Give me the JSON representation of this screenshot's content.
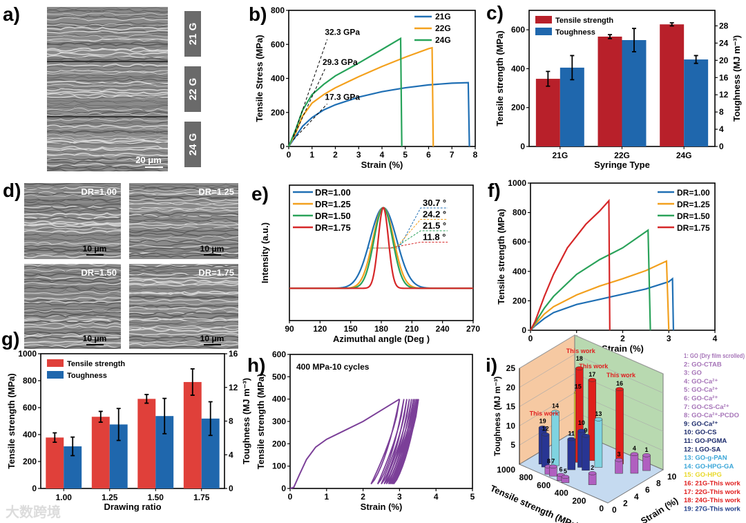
{
  "panel_letters": {
    "a": "a)",
    "b": "b)",
    "c": "c)",
    "d": "d)",
    "e": "e)",
    "f": "f)",
    "g": "g)",
    "h": "h)",
    "i": "i)"
  },
  "watermark": "大数跨境",
  "images": {
    "a": {
      "labels": [
        "21 G",
        "22 G",
        "24 G"
      ],
      "scale_bar": "20 μm"
    },
    "d": {
      "tiles": [
        {
          "label": "DR=1.00",
          "scale_bar": "10 μm"
        },
        {
          "label": "DR=1.25",
          "scale_bar": "10 μm"
        },
        {
          "label": "DR=1.50",
          "scale_bar": "10 μm"
        },
        {
          "label": "DR=1.75",
          "scale_bar": "10 μm"
        }
      ]
    }
  },
  "chart_data": [
    {
      "panel": "b",
      "type": "line",
      "xlabel": "Strain (%)",
      "ylabel": "Tensile Stress (MPa)",
      "xlim": [
        0,
        8
      ],
      "ylim": [
        0,
        800
      ],
      "xticks": [
        0,
        1,
        2,
        3,
        4,
        5,
        6,
        7,
        8
      ],
      "yticks": [
        0,
        200,
        400,
        600,
        800
      ],
      "legend": "top-right",
      "series": [
        {
          "name": "21G",
          "color": "#1f6fb4",
          "points": [
            [
              0,
              0
            ],
            [
              0.3,
              60
            ],
            [
              0.6,
              120
            ],
            [
              1,
              170
            ],
            [
              1.5,
              215
            ],
            [
              2,
              245
            ],
            [
              3,
              290
            ],
            [
              4,
              322
            ],
            [
              5,
              345
            ],
            [
              6,
              362
            ],
            [
              7,
              372
            ],
            [
              7.7,
              375
            ],
            [
              7.75,
              0
            ]
          ]
        },
        {
          "name": "22G",
          "color": "#f4a11d",
          "points": [
            [
              0,
              0
            ],
            [
              0.3,
              80
            ],
            [
              0.6,
              180
            ],
            [
              1,
              255
            ],
            [
              1.5,
              305
            ],
            [
              2,
              345
            ],
            [
              3,
              410
            ],
            [
              4,
              470
            ],
            [
              5,
              525
            ],
            [
              6,
              575
            ],
            [
              6.15,
              580
            ],
            [
              6.2,
              0
            ]
          ]
        },
        {
          "name": "24G",
          "color": "#27a35a",
          "points": [
            [
              0,
              0
            ],
            [
              0.3,
              100
            ],
            [
              0.6,
              215
            ],
            [
              1,
              305
            ],
            [
              1.5,
              365
            ],
            [
              2,
              415
            ],
            [
              3,
              490
            ],
            [
              4,
              570
            ],
            [
              4.8,
              635
            ],
            [
              4.85,
              0
            ]
          ]
        }
      ],
      "annotations": [
        {
          "text": "32.3 GPa",
          "x": 1.55,
          "y": 655,
          "from": [
            0.2,
            60
          ]
        },
        {
          "text": "29.3 GPa",
          "x": 1.45,
          "y": 480,
          "from": [
            0.2,
            55
          ]
        },
        {
          "text": "17.3 GPa",
          "x": 1.55,
          "y": 275,
          "from": [
            0.2,
            40
          ]
        }
      ]
    },
    {
      "panel": "c",
      "type": "bar",
      "xlabel": "Syringe Type",
      "ylabel": "Tensile strength (MPa)",
      "y2label": "Toughness (MJ m⁻³)",
      "categories": [
        "21G",
        "22G",
        "24G"
      ],
      "ylim": [
        0,
        700
      ],
      "y2lim": [
        0,
        31.6
      ],
      "yticks": [
        0,
        200,
        400,
        600
      ],
      "y2ticks": [
        0,
        4,
        8,
        12,
        16,
        20,
        24,
        28
      ],
      "legend": "top-left",
      "series": [
        {
          "name": "Tensile strength",
          "axis": "left",
          "color": "#b8202a",
          "values": [
            348,
            565,
            628
          ],
          "errors": [
            38,
            10,
            8
          ]
        },
        {
          "name": "Toughness",
          "axis": "right",
          "color": "#1f67ad",
          "values": [
            18.3,
            24.7,
            20.2
          ],
          "errors": [
            2.8,
            2.7,
            0.9
          ]
        }
      ]
    },
    {
      "panel": "e",
      "type": "line",
      "xlabel": "Azimuthal angle (Deg )",
      "ylabel": "Intensity (a.u.)",
      "xlim": [
        90,
        270
      ],
      "ylim": [
        -0.4,
        1.28
      ],
      "xticks": [
        90,
        120,
        150,
        180,
        210,
        240,
        270
      ],
      "yticks": [],
      "legend": "top-left",
      "peak_center": 182,
      "series": [
        {
          "name": "DR=1.00",
          "color": "#1f6fb4",
          "fwhm": 30.7,
          "label": "30.7 °"
        },
        {
          "name": "DR=1.25",
          "color": "#f2a01e",
          "fwhm": 24.2,
          "label": "24.2 °"
        },
        {
          "name": "DR=1.50",
          "color": "#2aa25a",
          "fwhm": 21.5,
          "label": "21.5 °"
        },
        {
          "name": "DR=1.75",
          "color": "#d62728",
          "fwhm": 11.8,
          "label": "11.8 °"
        }
      ]
    },
    {
      "panel": "f",
      "type": "line",
      "xlabel": "Strain (%)",
      "ylabel": "Tensile strength (MPa)",
      "xlim": [
        0,
        4
      ],
      "ylim": [
        0,
        1000
      ],
      "xticks": [
        0,
        1,
        2,
        3,
        4
      ],
      "yticks": [
        0,
        200,
        400,
        600,
        800,
        1000
      ],
      "legend": "top-right",
      "series": [
        {
          "name": "DR=1.00",
          "color": "#1f6fb4",
          "points": [
            [
              0,
              0
            ],
            [
              0.1,
              30
            ],
            [
              0.3,
              80
            ],
            [
              0.5,
              120
            ],
            [
              1,
              175
            ],
            [
              1.5,
              210
            ],
            [
              2,
              245
            ],
            [
              2.5,
              280
            ],
            [
              3,
              330
            ],
            [
              3.08,
              350
            ],
            [
              3.1,
              0
            ]
          ]
        },
        {
          "name": "DR=1.25",
          "color": "#f2a01e",
          "points": [
            [
              0,
              0
            ],
            [
              0.1,
              40
            ],
            [
              0.3,
              110
            ],
            [
              0.5,
              160
            ],
            [
              1,
              240
            ],
            [
              1.5,
              300
            ],
            [
              2,
              350
            ],
            [
              2.5,
              405
            ],
            [
              2.95,
              470
            ],
            [
              3.0,
              0
            ]
          ]
        },
        {
          "name": "DR=1.50",
          "color": "#2aa25a",
          "points": [
            [
              0,
              0
            ],
            [
              0.1,
              50
            ],
            [
              0.3,
              150
            ],
            [
              0.5,
              230
            ],
            [
              1,
              380
            ],
            [
              1.5,
              480
            ],
            [
              2,
              560
            ],
            [
              2.55,
              680
            ],
            [
              2.6,
              0
            ]
          ]
        },
        {
          "name": "DR=1.75",
          "color": "#d62728",
          "points": [
            [
              0,
              0
            ],
            [
              0.1,
              60
            ],
            [
              0.3,
              230
            ],
            [
              0.5,
              380
            ],
            [
              0.8,
              560
            ],
            [
              1.2,
              720
            ],
            [
              1.5,
              810
            ],
            [
              1.7,
              880
            ],
            [
              1.72,
              0
            ]
          ]
        }
      ]
    },
    {
      "panel": "g",
      "type": "bar",
      "xlabel": "Drawing ratio",
      "ylabel": "Tensile strength (MPa)",
      "y2label": "Toughness (MJ m⁻³)",
      "categories": [
        "1.00",
        "1.25",
        "1.50",
        "1.75"
      ],
      "ylim": [
        0,
        1000
      ],
      "y2lim": [
        0,
        16
      ],
      "yticks": [
        0,
        200,
        400,
        600,
        800,
        1000
      ],
      "y2ticks": [
        0,
        4,
        8,
        12,
        16
      ],
      "legend": "top-left",
      "series": [
        {
          "name": "Tensile strength",
          "axis": "left",
          "color": "#e0403a",
          "values": [
            378,
            532,
            665,
            790
          ],
          "errors": [
            35,
            40,
            32,
            98
          ]
        },
        {
          "name": "Toughness",
          "axis": "right",
          "color": "#1f67ad",
          "values": [
            5.0,
            7.6,
            8.6,
            8.3
          ],
          "errors": [
            1.1,
            1.9,
            2.1,
            2.0
          ]
        }
      ]
    },
    {
      "panel": "h",
      "type": "line",
      "title": "400 MPa-10 cycles",
      "xlabel": "Strain (%)",
      "ylabel": "Tensile strength (MPa)",
      "xlim": [
        0,
        5
      ],
      "ylim": [
        0,
        600
      ],
      "xticks": [
        0,
        1,
        2,
        3,
        4,
        5
      ],
      "yticks": [
        0,
        100,
        200,
        300,
        400,
        500,
        600
      ],
      "color": "#7b3f98",
      "loading": [
        [
          0,
          0
        ],
        [
          0.1,
          5
        ],
        [
          0.25,
          60
        ],
        [
          0.45,
          130
        ],
        [
          0.7,
          185
        ],
        [
          1,
          220
        ],
        [
          1.5,
          260
        ],
        [
          2,
          300
        ],
        [
          2.5,
          350
        ],
        [
          3.0,
          400
        ]
      ],
      "cycles": {
        "max_stress": 400,
        "min_stress": 20,
        "peak_strains": [
          3.0,
          3.12,
          3.2,
          3.27,
          3.33,
          3.38,
          3.42,
          3.46,
          3.49,
          3.52
        ],
        "residual_strains": [
          2.22,
          2.4,
          2.5,
          2.58,
          2.64,
          2.7,
          2.74,
          2.78,
          2.81,
          2.84
        ]
      }
    },
    {
      "panel": "i",
      "type": "bar3d",
      "xlabel": "Tensile strength (MPa)",
      "ylabel": "Strain (%)",
      "zlabel": "Toughness (MJ m⁻³)",
      "xlim": [
        0,
        1000
      ],
      "ylim": [
        0,
        10
      ],
      "zlim": [
        0,
        25
      ],
      "xticks": [
        0,
        200,
        400,
        600,
        800,
        1000
      ],
      "yticks": [
        0,
        2,
        4,
        6,
        8,
        10
      ],
      "zticks": [
        5,
        10,
        15,
        20,
        25
      ],
      "highlight_label": "This work",
      "bars": [
        {
          "id": 1,
          "name": "1: GO (Dry film scrolled)",
          "tensile": 100,
          "strain": 8.6,
          "toughness": 4,
          "color": "#b05fc0",
          "legend_color": "#a674b8"
        },
        {
          "id": 2,
          "name": "2: GO-CTAB",
          "tensile": 300,
          "strain": 2,
          "toughness": 3,
          "color": "#b05fc0",
          "legend_color": "#a674b8"
        },
        {
          "id": 3,
          "name": "3: GO",
          "tensile": 250,
          "strain": 6,
          "toughness": 3.5,
          "color": "#b05fc0",
          "legend_color": "#a674b8"
        },
        {
          "id": 4,
          "name": "4: GO-Ca²⁺",
          "tensile": 150,
          "strain": 7.2,
          "toughness": 5,
          "color": "#b05fc0",
          "legend_color": "#a674b8"
        },
        {
          "id": 5,
          "name": "5: GO-Ca²⁺",
          "tensile": 500,
          "strain": 0.3,
          "toughness": 1.5,
          "color": "#b05fc0",
          "legend_color": "#a674b8"
        },
        {
          "id": 6,
          "name": "6: GO-Ca²⁺",
          "tensile": 550,
          "strain": 0.3,
          "toughness": 1.5,
          "color": "#b05fc0",
          "legend_color": "#a674b8"
        },
        {
          "id": 7,
          "name": "7: GO-CS-Ca²⁺",
          "tensile": 650,
          "strain": 0.5,
          "toughness": 2.5,
          "color": "#b05fc0",
          "legend_color": "#a674b8"
        },
        {
          "id": 8,
          "name": "8: GO-Ca²⁺-PCDO",
          "tensile": 700,
          "strain": 0.5,
          "toughness": 2,
          "color": "#b05fc0",
          "legend_color": "#a674b8"
        },
        {
          "id": 9,
          "name": "9: GO-Ca²⁺",
          "tensile": 500,
          "strain": 4,
          "toughness": 9,
          "color": "#283593",
          "legend_color": "#1b2a6b"
        },
        {
          "id": 10,
          "name": "10: GO-CS",
          "tensile": 560,
          "strain": 4.2,
          "toughness": 9.5,
          "color": "#283593",
          "legend_color": "#1b2a6b"
        },
        {
          "id": 11,
          "name": "11: GO-PGMA",
          "tensile": 600,
          "strain": 3,
          "toughness": 8,
          "color": "#283593",
          "legend_color": "#1b2a6b"
        },
        {
          "id": 12,
          "name": "12: LGO-SA",
          "tensile": 800,
          "strain": 1.5,
          "toughness": 8.5,
          "color": "#283593",
          "legend_color": "#1b2a6b"
        },
        {
          "id": 13,
          "name": "13: GO-g-PAN",
          "tensile": 450,
          "strain": 5.5,
          "toughness": 12.5,
          "color": "#7fd3e0",
          "legend_color": "#3aa6d8"
        },
        {
          "id": 14,
          "name": "14: GO-HPG-GA",
          "tensile": 750,
          "strain": 2.5,
          "toughness": 14,
          "color": "#7fd3e0",
          "legend_color": "#3aa6d8"
        },
        {
          "id": 15,
          "name": "15: GO-HPG",
          "tensile": 650,
          "strain": 5,
          "toughness": 18,
          "color": "#f5e83a",
          "legend_color": "#e8d82a"
        },
        {
          "id": 16,
          "name": "16: 21G-This work",
          "tensile": 348,
          "strain": 7.7,
          "toughness": 19.5,
          "color": "#e0201b",
          "legend_color": "#e02020",
          "this_work": true
        },
        {
          "id": 17,
          "name": "17: 22G-This work",
          "tensile": 565,
          "strain": 6.2,
          "toughness": 21,
          "color": "#e0201b",
          "legend_color": "#e02020",
          "this_work": true
        },
        {
          "id": 18,
          "name": "18: 24G-This work",
          "tensile": 628,
          "strain": 4.9,
          "toughness": 24.5,
          "color": "#e0201b",
          "legend_color": "#e02020",
          "this_work": true
        },
        {
          "id": 19,
          "name": "19: 27G-This work",
          "tensile": 850,
          "strain": 1.8,
          "toughness": 9.5,
          "color": "#283593",
          "legend_color": "#1f3c88",
          "this_work": true
        }
      ]
    }
  ]
}
